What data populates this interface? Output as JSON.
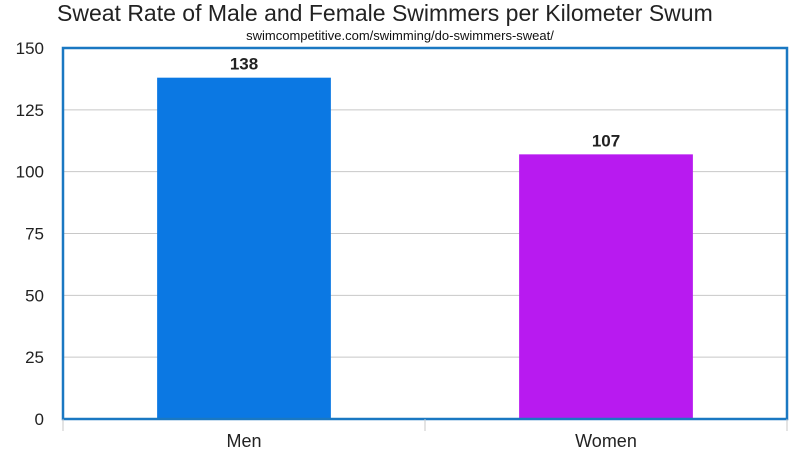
{
  "chart_data": {
    "type": "bar",
    "title": "Sweat Rate of Male and Female Swimmers per Kilometer Swum",
    "subtitle": "swimcompetitive.com/swimming/do-swimmers-sweat/",
    "categories": [
      "Men",
      "Women"
    ],
    "values": [
      138,
      107
    ],
    "data_labels": [
      "138",
      "107"
    ],
    "colors": [
      "#0b78e3",
      "#b81af0"
    ],
    "frame_color": "#1a78c2",
    "grid_color": "#c8c8c8",
    "ylim": [
      0,
      150
    ],
    "yticks": [
      0,
      25,
      50,
      75,
      100,
      125,
      150
    ],
    "grid": true,
    "legend": "none"
  }
}
